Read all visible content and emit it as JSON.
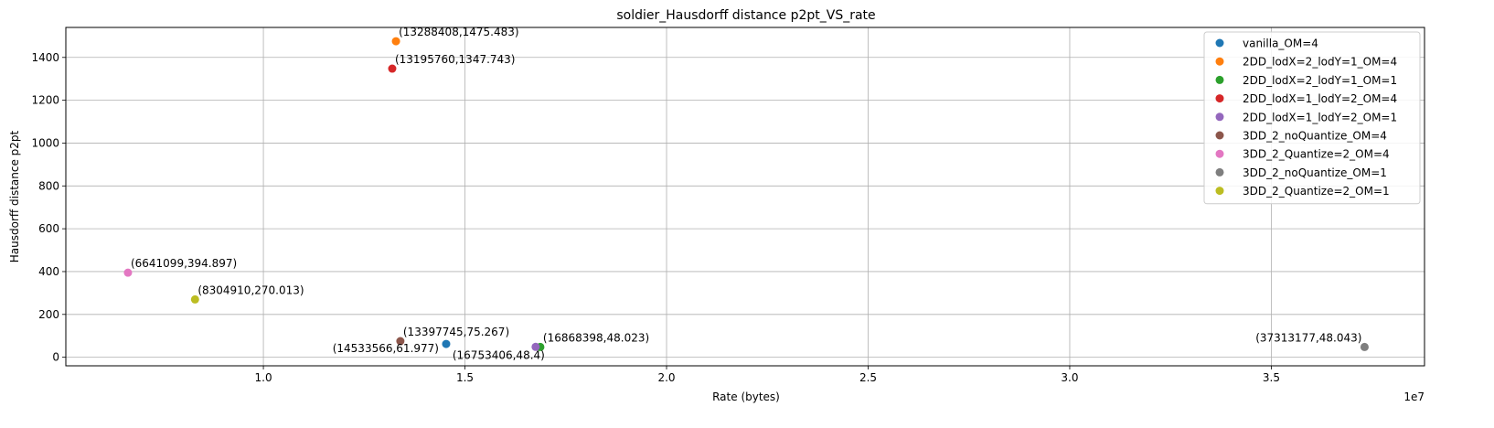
{
  "chart_data": {
    "type": "scatter",
    "title": "soldier_Hausdorff distance p2pt_VS_rate",
    "xlabel": "Rate (bytes)",
    "ylabel": "Hausdorff distance p2pt",
    "x_offset_label": "1e7",
    "xlim": [
      5100000,
      38800000
    ],
    "ylim": [
      -40,
      1540
    ],
    "xticks": [
      10000000,
      15000000,
      20000000,
      25000000,
      30000000,
      35000000
    ],
    "xtick_labels": [
      "1.0",
      "1.5",
      "2.0",
      "2.5",
      "3.0",
      "3.5"
    ],
    "yticks": [
      0,
      200,
      400,
      600,
      800,
      1000,
      1200,
      1400
    ],
    "ytick_labels": [
      "0",
      "200",
      "400",
      "600",
      "800",
      "1000",
      "1200",
      "1400"
    ],
    "grid": true,
    "legend_position": "top-right",
    "series": [
      {
        "name": "vanilla_OM=4",
        "color": "#1f77b4",
        "x": 14533566,
        "y": 61.977,
        "label": "(14533566,61.977)",
        "label_pos": "left"
      },
      {
        "name": "2DD_lodX=2_lodY=1_OM=4",
        "color": "#ff7f0e",
        "x": 13288408,
        "y": 1475.483,
        "label": "(13288408,1475.483)",
        "label_pos": "above-right"
      },
      {
        "name": "2DD_lodX=2_lodY=1_OM=1",
        "color": "#2ca02c",
        "x": 16868398,
        "y": 48.023,
        "label": "(16868398,48.023)",
        "label_pos": "above-right"
      },
      {
        "name": "2DD_lodX=1_lodY=2_OM=4",
        "color": "#d62728",
        "x": 13195760,
        "y": 1347.743,
        "label": "(13195760,1347.743)",
        "label_pos": "above-right"
      },
      {
        "name": "2DD_lodX=1_lodY=2_OM=1",
        "color": "#9467bd",
        "x": 16753406,
        "y": 48.4,
        "label": "(16753406,48.4)",
        "label_pos": "below-left"
      },
      {
        "name": "3DD_2_noQuantize_OM=4",
        "color": "#8c564b",
        "x": 13397745,
        "y": 75.267,
        "label": "(13397745,75.267)",
        "label_pos": "above-right"
      },
      {
        "name": "3DD_2_Quantize=2_OM=4",
        "color": "#e377c2",
        "x": 6641099,
        "y": 394.897,
        "label": "(6641099,394.897)",
        "label_pos": "above-right"
      },
      {
        "name": "3DD_2_noQuantize_OM=1",
        "color": "#7f7f7f",
        "x": 37313177,
        "y": 48.043,
        "label": "(37313177,48.043)",
        "label_pos": "above-left"
      },
      {
        "name": "3DD_2_Quantize=2_OM=1",
        "color": "#bcbd22",
        "x": 8304910,
        "y": 270.013,
        "label": "(8304910,270.013)",
        "label_pos": "above-right"
      }
    ]
  }
}
